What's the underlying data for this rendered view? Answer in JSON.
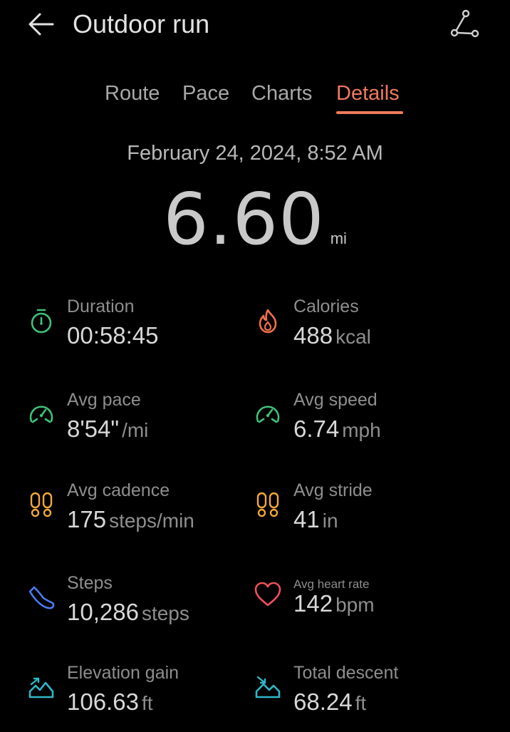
{
  "header": {
    "title": "Outdoor run",
    "back_icon": "back-arrow-icon",
    "share_icon": "share-route-icon"
  },
  "tabs": [
    {
      "label": "Route",
      "active": false
    },
    {
      "label": "Pace",
      "active": false
    },
    {
      "label": "Charts",
      "active": false
    },
    {
      "label": "Details",
      "active": true
    }
  ],
  "summary": {
    "datetime": "February 24, 2024, 8:52 AM",
    "distance": "6.60",
    "distance_unit": "mi"
  },
  "stats": [
    {
      "label": "Duration",
      "value": "00:58:45",
      "unit": "",
      "icon": "stopwatch-icon",
      "color": "#3ec27a"
    },
    {
      "label": "Calories",
      "value": "488",
      "unit": "kcal",
      "icon": "flame-icon",
      "color": "#f0704c"
    },
    {
      "label": "Avg pace",
      "value": "8'54\"",
      "unit": "/mi",
      "icon": "speedometer-icon",
      "color": "#3ec27a"
    },
    {
      "label": "Avg speed",
      "value": "6.74",
      "unit": "mph",
      "icon": "speedometer-icon",
      "color": "#3ec27a"
    },
    {
      "label": "Avg cadence",
      "value": "175",
      "unit": "steps/min",
      "icon": "footprints-icon",
      "color": "#f2a83a"
    },
    {
      "label": "Avg stride",
      "value": "41",
      "unit": "in",
      "icon": "footprints-icon",
      "color": "#f2a83a"
    },
    {
      "label": "Steps",
      "value": "10,286",
      "unit": "steps",
      "icon": "shoe-icon",
      "color": "#4a7bf0"
    },
    {
      "label": "Avg heart rate",
      "value": "142",
      "unit": "bpm",
      "icon": "heart-icon",
      "color": "#f0505c"
    },
    {
      "label": "Elevation gain",
      "value": "106.63",
      "unit": "ft",
      "icon": "elevation-gain-icon",
      "color": "#2fb8c8"
    },
    {
      "label": "Total descent",
      "value": "68.24",
      "unit": "ft",
      "icon": "elevation-descent-icon",
      "color": "#2fb8c8"
    }
  ],
  "colors": {
    "background": "#000000",
    "accent": "#f07a5c",
    "text_primary": "#d8d8d8",
    "text_secondary": "#8e8e8e"
  }
}
